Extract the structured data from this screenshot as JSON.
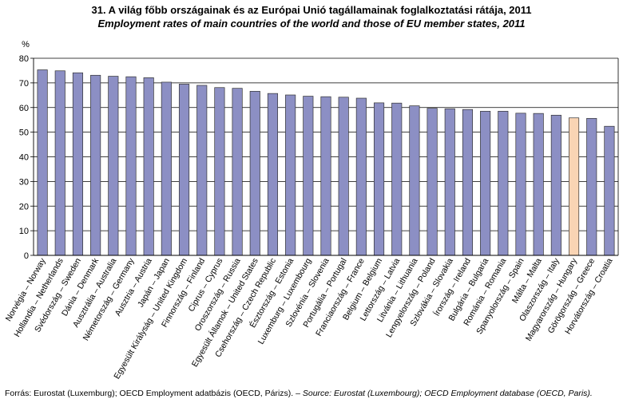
{
  "title_hu": "31. A világ főbb országainak és az Európai Unió tagállamainak foglalkoztatási rátája, 2011",
  "title_en": "Employment rates of main countries of the world and those of EU member states, 2011",
  "source_hu": "Forrás:  Eurostat (Luxemburg); OECD Employment adatbázis (OECD, Párizs). –",
  "source_en": "Source:  Eurostat (Luxembourg);  OECD Employment database (OECD, Paris).",
  "colors": {
    "bar": "#8c8fc4",
    "highlight": "#f9d4b4",
    "border": "#333333"
  },
  "chart_data": {
    "type": "bar",
    "title": "Employment rates of main countries of the world and those of EU member states, 2011",
    "ylabel": "%",
    "xlabel": "",
    "ylim": [
      0,
      80
    ],
    "yticks": [
      0,
      10,
      20,
      30,
      40,
      50,
      60,
      70,
      80
    ],
    "grid": true,
    "highlight": "Magyarország – Hungary",
    "categories": [
      "Norvégia – Norway",
      "Hollandia – Netherlands",
      "Svédország – Sweden",
      "Dánia – Denmark",
      "Ausztrália – Australia",
      "Németország – Germany",
      "Ausztria – Austria",
      "Japán – Japan",
      "Egyesült Királyság – United Kingdom",
      "Finnország – Finland",
      "Ciprus – Cyprus",
      "Oroszország – Russia",
      "Egyesült Államok – United States",
      "Csehország – Czech Republic",
      "Észtország – Estonia",
      "Luxemburg – Luxembourg",
      "Szlovénia – Slovenia",
      "Portugália – Portugal",
      "Franciaország – France",
      "Belgium – Belgium",
      "Lettország – Latvia",
      "Litvánia – Lithuania",
      "Lengyelország – Poland",
      "Szlovákia – Slovakia",
      "Írország – Ireland",
      "Bulgária – Bulgaria",
      "Románia – Romania",
      "Spanyolország – Spain",
      "Málta – Malta",
      "Olaszország – Italy",
      "Magyarország – Hungary",
      "Görögország – Greece",
      "Horvátország – Croatia"
    ],
    "values": [
      75.3,
      74.9,
      74.1,
      73.1,
      72.7,
      72.5,
      72.1,
      70.3,
      69.5,
      69.0,
      68.1,
      67.8,
      66.6,
      65.7,
      65.1,
      64.6,
      64.4,
      64.2,
      63.8,
      61.9,
      61.8,
      60.7,
      59.7,
      59.5,
      59.2,
      58.5,
      58.5,
      57.7,
      57.6,
      56.9,
      55.8,
      55.6,
      52.4
    ]
  }
}
